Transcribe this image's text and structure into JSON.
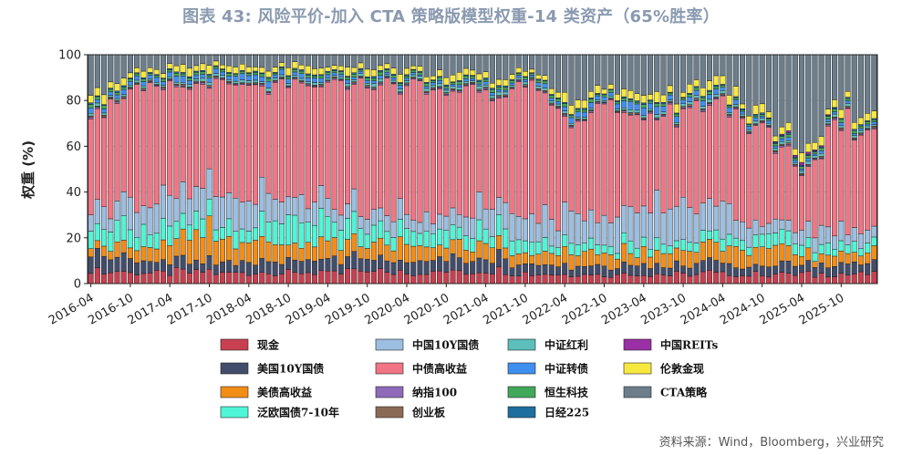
{
  "chart_data": {
    "type": "bar",
    "stacked": true,
    "title": "图表 43: 风险平价-加入 CTA 策略版模型权重-14 类资产（65%胜率）",
    "ylabel": "权重 (%)",
    "xlabel": "",
    "ylim": [
      0,
      100
    ],
    "yticks": [
      0,
      20,
      40,
      60,
      80,
      100
    ],
    "xtick_labels": [
      "2016-04",
      "2016-10",
      "2017-04",
      "2017-10",
      "2018-04",
      "2018-10",
      "2019-04",
      "2019-10",
      "2020-04",
      "2020-10",
      "2021-04",
      "2021-10",
      "2022-04",
      "2022-10",
      "2023-04",
      "2023-10",
      "2024-04",
      "2024-10",
      "2025-04",
      "2025-10"
    ],
    "grid": true,
    "legend_position": "bottom",
    "series": [
      {
        "name": "现金",
        "color": "#c8404f"
      },
      {
        "name": "美国10Y国债",
        "color": "#424d6b"
      },
      {
        "name": "美债高收益",
        "color": "#f28d16"
      },
      {
        "name": "泛欧国债7-10年",
        "color": "#4ff5d6"
      },
      {
        "name": "中国10Y国债",
        "color": "#9cbee0"
      },
      {
        "name": "中债高收益",
        "color": "#f07585"
      },
      {
        "name": "纳指100",
        "color": "#8e6ab9"
      },
      {
        "name": "创业板",
        "color": "#8b6a55"
      },
      {
        "name": "中证红利",
        "color": "#5cbfbb"
      },
      {
        "name": "中证转债",
        "color": "#3f8ff0"
      },
      {
        "name": "恒生科技",
        "color": "#41a85a"
      },
      {
        "name": "日经225",
        "color": "#1e6e9e"
      },
      {
        "name": "中国REITs",
        "color": "#9b2fa5"
      },
      {
        "name": "伦敦金现",
        "color": "#f7e840"
      },
      {
        "name": "CTA策略",
        "color": "#6c7e8c"
      }
    ],
    "periods": [
      {
        "label": "2016-04",
        "values": [
          5,
          7,
          4,
          7,
          7,
          48,
          0.5,
          0.5,
          1,
          1.5,
          1,
          0.5,
          0,
          3,
          14
        ]
      },
      {
        "label": "2016-10",
        "values": [
          5,
          6,
          5,
          8,
          12,
          47,
          0.5,
          0.5,
          1,
          2,
          1,
          0.5,
          0,
          3,
          8.5
        ]
      },
      {
        "label": "2017-04",
        "values": [
          5,
          5,
          8,
          9,
          14,
          44,
          0.5,
          0.5,
          1,
          2,
          1,
          0.5,
          0,
          3,
          6.5
        ]
      },
      {
        "label": "2017-10",
        "values": [
          5,
          4,
          12,
          8,
          13,
          45,
          0.5,
          0.5,
          1,
          2,
          1,
          0.5,
          0,
          3,
          4.5
        ]
      },
      {
        "label": "2018-04",
        "values": [
          5,
          5,
          10,
          7,
          12,
          47,
          0.5,
          0.5,
          1,
          2.5,
          1,
          0.5,
          0,
          2.5,
          5.5
        ]
      },
      {
        "label": "2018-10",
        "values": [
          5,
          6,
          8,
          12,
          10,
          45,
          0.5,
          0.5,
          1,
          2,
          1,
          0.5,
          0,
          3,
          5.5
        ]
      },
      {
        "label": "2019-04",
        "values": [
          5,
          6,
          8,
          10,
          8,
          50,
          0.5,
          0.5,
          1,
          1.5,
          1,
          0.5,
          0,
          3,
          5
        ]
      },
      {
        "label": "2019-10",
        "values": [
          5,
          5,
          6,
          8,
          6,
          57,
          0.5,
          0.5,
          1,
          1,
          1,
          0.5,
          0,
          2.5,
          6
        ]
      },
      {
        "label": "2020-04",
        "values": [
          5,
          5,
          7,
          7,
          7,
          56,
          0.5,
          0.5,
          1,
          1,
          1,
          0.5,
          0,
          2.5,
          6
        ]
      },
      {
        "label": "2020-10",
        "values": [
          5,
          6,
          6,
          6,
          7,
          54,
          0.5,
          0.5,
          1,
          1,
          1,
          0.5,
          0,
          2.5,
          9
        ]
      },
      {
        "label": "2021-04",
        "values": [
          5,
          5,
          5,
          6,
          8,
          55,
          0.5,
          0.5,
          1,
          1,
          1,
          0.5,
          0,
          2.5,
          9
        ]
      },
      {
        "label": "2021-10",
        "values": [
          5,
          5,
          5,
          6,
          12,
          53,
          0.5,
          0.5,
          1,
          1,
          1,
          0.5,
          0,
          2,
          7.5
        ]
      },
      {
        "label": "2022-04",
        "values": [
          4,
          4,
          5,
          4,
          11,
          46,
          0.5,
          0.5,
          1,
          2,
          1,
          0.5,
          0,
          3,
          17.5
        ]
      },
      {
        "label": "2022-10",
        "values": [
          4,
          4,
          6,
          4,
          14,
          44,
          0.5,
          0.5,
          1,
          2,
          1,
          0.5,
          0,
          3,
          16
        ]
      },
      {
        "label": "2023-04",
        "values": [
          4,
          4,
          5,
          4,
          16,
          40,
          0.5,
          0.5,
          1,
          3,
          1,
          0.5,
          0,
          4,
          16.5
        ]
      },
      {
        "label": "2023-10",
        "values": [
          4,
          4,
          6,
          4,
          15,
          43,
          0.5,
          0.5,
          1,
          2,
          1,
          0.5,
          0,
          3,
          15.5
        ]
      },
      {
        "label": "2024-04",
        "values": [
          4,
          4,
          7,
          4,
          14,
          45,
          0.5,
          0.5,
          1,
          2,
          1,
          0.5,
          0,
          4,
          12.5
        ]
      },
      {
        "label": "2024-10",
        "values": [
          4,
          4,
          8,
          6,
          4,
          38,
          0.5,
          0.5,
          1,
          1,
          1,
          0.5,
          0,
          3,
          28.5
        ]
      },
      {
        "label": "2025-04",
        "values": [
          4,
          4,
          4,
          5,
          6,
          28,
          0.5,
          0.5,
          1,
          1,
          1,
          0.5,
          1,
          3,
          40.5
        ]
      },
      {
        "label": "2025-10",
        "values": [
          4,
          4,
          5,
          4,
          6,
          48,
          0.5,
          0.5,
          1,
          1,
          1,
          0.5,
          0,
          3,
          21.5
        ]
      }
    ]
  },
  "legend": {
    "items": [
      "现金",
      "美国10Y国债",
      "美债高收益",
      "泛欧国债7-10年",
      "中国10Y国债",
      "中债高收益",
      "纳指100",
      "创业板",
      "中证红利",
      "中证转债",
      "恒生科技",
      "日经225",
      "中国REITs",
      "伦敦金现",
      "CTA策略"
    ]
  },
  "source": "资料来源：Wind，Bloomberg，兴业研究"
}
